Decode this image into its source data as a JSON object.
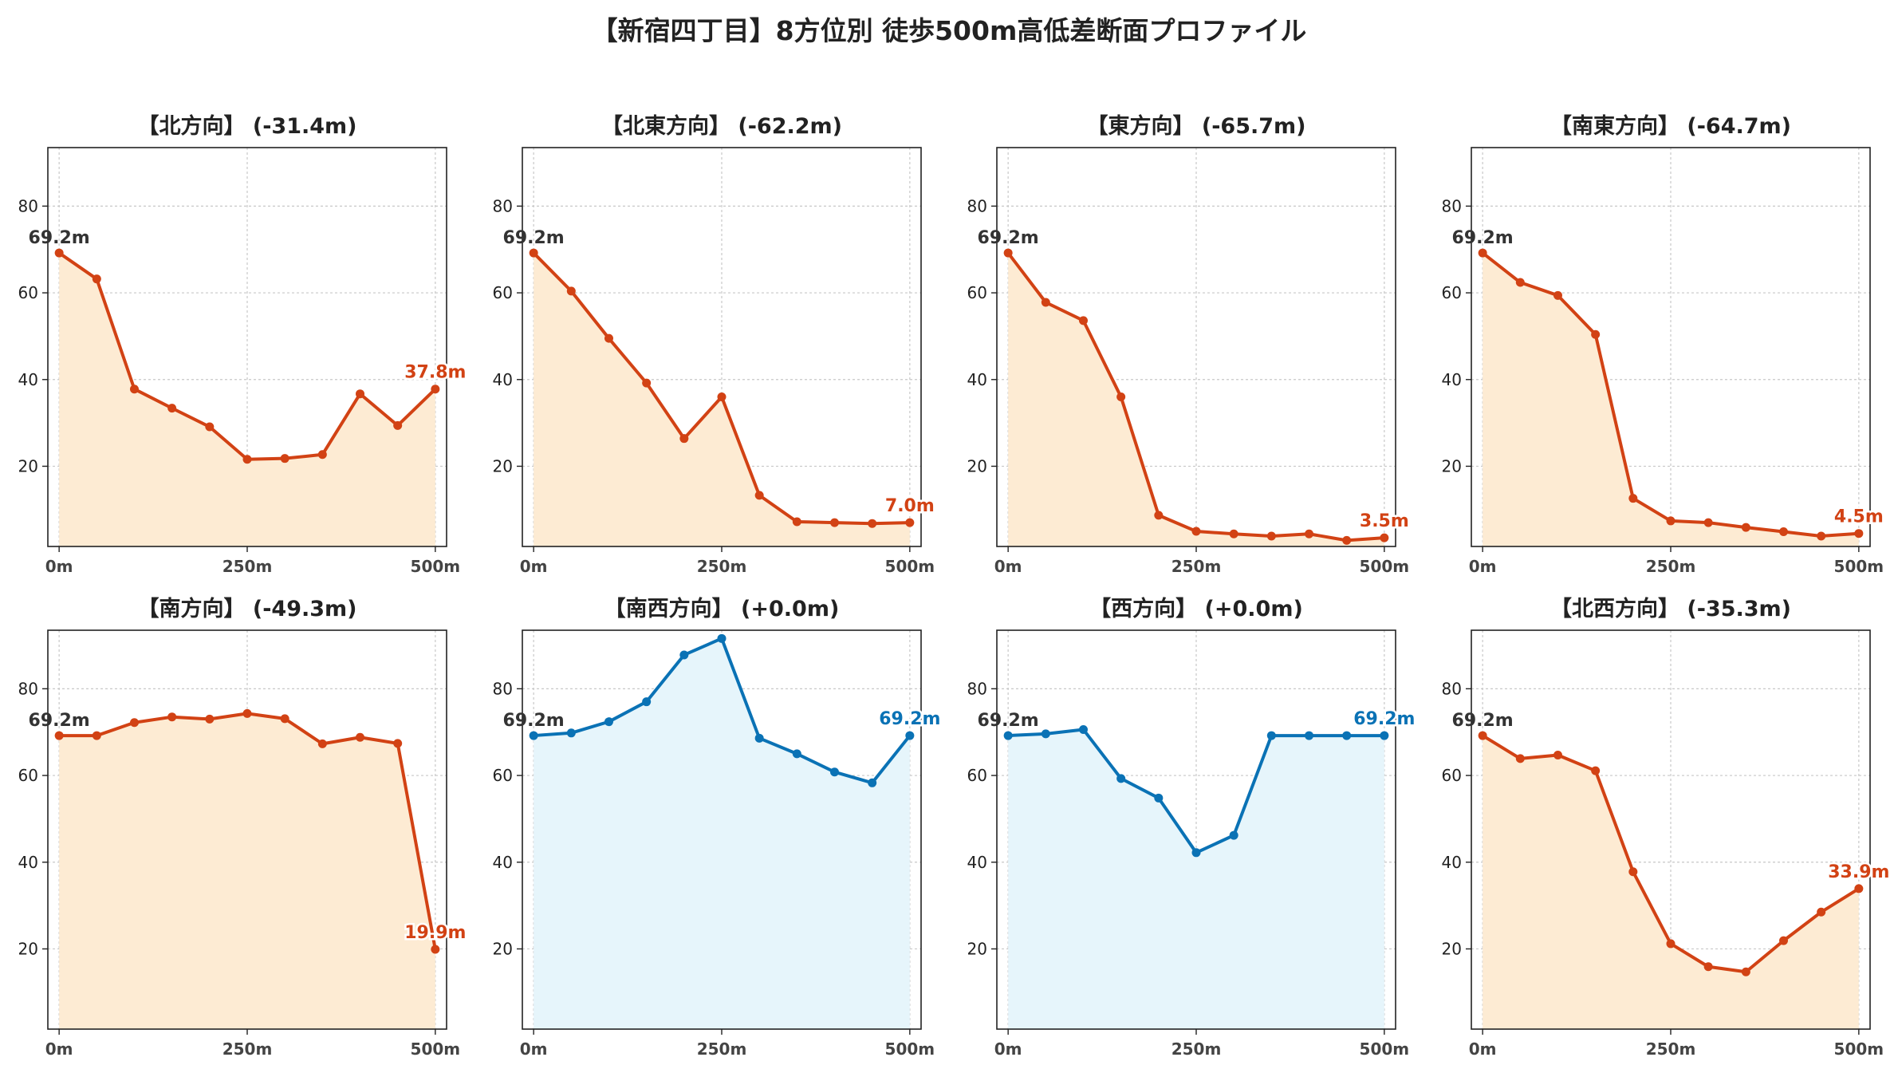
{
  "title": "【新宿四丁目】8方位別 徒歩500m高低差断面プロファイル",
  "colors": {
    "down": "#d24214",
    "flat": "#0a72b5",
    "down_fill": "#fdebd3",
    "flat_fill": "#e6f5fb",
    "start_label": "#333333"
  },
  "chart_data": [
    {
      "type": "area",
      "title": "【北方向】 (-31.4m)",
      "x": [
        0,
        50,
        100,
        150,
        200,
        250,
        300,
        350,
        400,
        450,
        500
      ],
      "y": [
        69.2,
        63.2,
        37.8,
        33.4,
        29.1,
        21.6,
        21.8,
        22.7,
        36.7,
        29.4,
        37.8
      ],
      "xticks": [
        "0m",
        "250m",
        "500m"
      ],
      "yticks": [
        20,
        40,
        60,
        80
      ],
      "ylim": [
        1.5,
        93.5
      ],
      "xlim": [
        -15,
        515
      ],
      "start_label": "69.2m",
      "end_label": "37.8m",
      "trend": "down",
      "grid": true
    },
    {
      "type": "area",
      "title": "【北東方向】 (-62.2m)",
      "x": [
        0,
        50,
        100,
        150,
        200,
        250,
        300,
        350,
        400,
        450,
        500
      ],
      "y": [
        69.2,
        60.4,
        49.5,
        39.2,
        26.4,
        36.0,
        13.3,
        7.2,
        7.0,
        6.8,
        7.0
      ],
      "xticks": [
        "0m",
        "250m",
        "500m"
      ],
      "yticks": [
        20,
        40,
        60,
        80
      ],
      "ylim": [
        1.5,
        93.5
      ],
      "xlim": [
        -15,
        515
      ],
      "start_label": "69.2m",
      "end_label": "7.0m",
      "trend": "down",
      "grid": true
    },
    {
      "type": "area",
      "title": "【東方向】 (-65.7m)",
      "x": [
        0,
        50,
        100,
        150,
        200,
        250,
        300,
        350,
        400,
        450,
        500
      ],
      "y": [
        69.2,
        57.8,
        53.6,
        36.0,
        8.7,
        5.0,
        4.4,
        3.9,
        4.4,
        2.9,
        3.5
      ],
      "xticks": [
        "0m",
        "250m",
        "500m"
      ],
      "yticks": [
        20,
        40,
        60,
        80
      ],
      "ylim": [
        1.5,
        93.5
      ],
      "xlim": [
        -15,
        515
      ],
      "start_label": "69.2m",
      "end_label": "3.5m",
      "trend": "down",
      "grid": true
    },
    {
      "type": "area",
      "title": "【南東方向】 (-64.7m)",
      "x": [
        0,
        50,
        100,
        150,
        200,
        250,
        300,
        350,
        400,
        450,
        500
      ],
      "y": [
        69.2,
        62.4,
        59.4,
        50.4,
        12.6,
        7.4,
        7.0,
        5.9,
        4.9,
        3.9,
        4.5
      ],
      "xticks": [
        "0m",
        "250m",
        "500m"
      ],
      "yticks": [
        20,
        40,
        60,
        80
      ],
      "ylim": [
        1.5,
        93.5
      ],
      "xlim": [
        -15,
        515
      ],
      "start_label": "69.2m",
      "end_label": "4.5m",
      "trend": "down",
      "grid": true
    },
    {
      "type": "area",
      "title": "【南方向】 (-49.3m)",
      "x": [
        0,
        50,
        100,
        150,
        200,
        250,
        300,
        350,
        400,
        450,
        500
      ],
      "y": [
        69.2,
        69.2,
        72.2,
        73.5,
        73.0,
        74.3,
        73.1,
        67.3,
        68.8,
        67.4,
        19.9
      ],
      "xticks": [
        "0m",
        "250m",
        "500m"
      ],
      "yticks": [
        20,
        40,
        60,
        80
      ],
      "ylim": [
        1.5,
        93.5
      ],
      "xlim": [
        -15,
        515
      ],
      "start_label": "69.2m",
      "end_label": "19.9m",
      "trend": "down",
      "grid": true
    },
    {
      "type": "area",
      "title": "【南西方向】 (+0.0m)",
      "x": [
        0,
        50,
        100,
        150,
        200,
        250,
        300,
        350,
        400,
        450,
        500
      ],
      "y": [
        69.2,
        69.8,
        72.4,
        77.0,
        87.8,
        91.6,
        68.6,
        65.0,
        60.8,
        58.3,
        69.2
      ],
      "xticks": [
        "0m",
        "250m",
        "500m"
      ],
      "yticks": [
        20,
        40,
        60,
        80
      ],
      "ylim": [
        1.5,
        93.5
      ],
      "xlim": [
        -15,
        515
      ],
      "start_label": "69.2m",
      "end_label": "69.2m",
      "trend": "flat",
      "grid": true
    },
    {
      "type": "area",
      "title": "【西方向】 (+0.0m)",
      "x": [
        0,
        50,
        100,
        150,
        200,
        250,
        300,
        350,
        400,
        450,
        500
      ],
      "y": [
        69.2,
        69.6,
        70.6,
        59.3,
        54.8,
        42.2,
        46.2,
        69.2,
        69.2,
        69.2,
        69.2
      ],
      "xticks": [
        "0m",
        "250m",
        "500m"
      ],
      "yticks": [
        20,
        40,
        60,
        80
      ],
      "ylim": [
        1.5,
        93.5
      ],
      "xlim": [
        -15,
        515
      ],
      "start_label": "69.2m",
      "end_label": "69.2m",
      "trend": "flat",
      "grid": true
    },
    {
      "type": "area",
      "title": "【北西方向】 (-35.3m)",
      "x": [
        0,
        50,
        100,
        150,
        200,
        250,
        300,
        350,
        400,
        450,
        500
      ],
      "y": [
        69.2,
        63.9,
        64.7,
        61.1,
        37.8,
        21.2,
        15.9,
        14.7,
        21.9,
        28.5,
        33.9
      ],
      "xticks": [
        "0m",
        "250m",
        "500m"
      ],
      "yticks": [
        20,
        40,
        60,
        80
      ],
      "ylim": [
        1.5,
        93.5
      ],
      "xlim": [
        -15,
        515
      ],
      "start_label": "69.2m",
      "end_label": "33.9m",
      "trend": "down",
      "grid": true
    }
  ]
}
